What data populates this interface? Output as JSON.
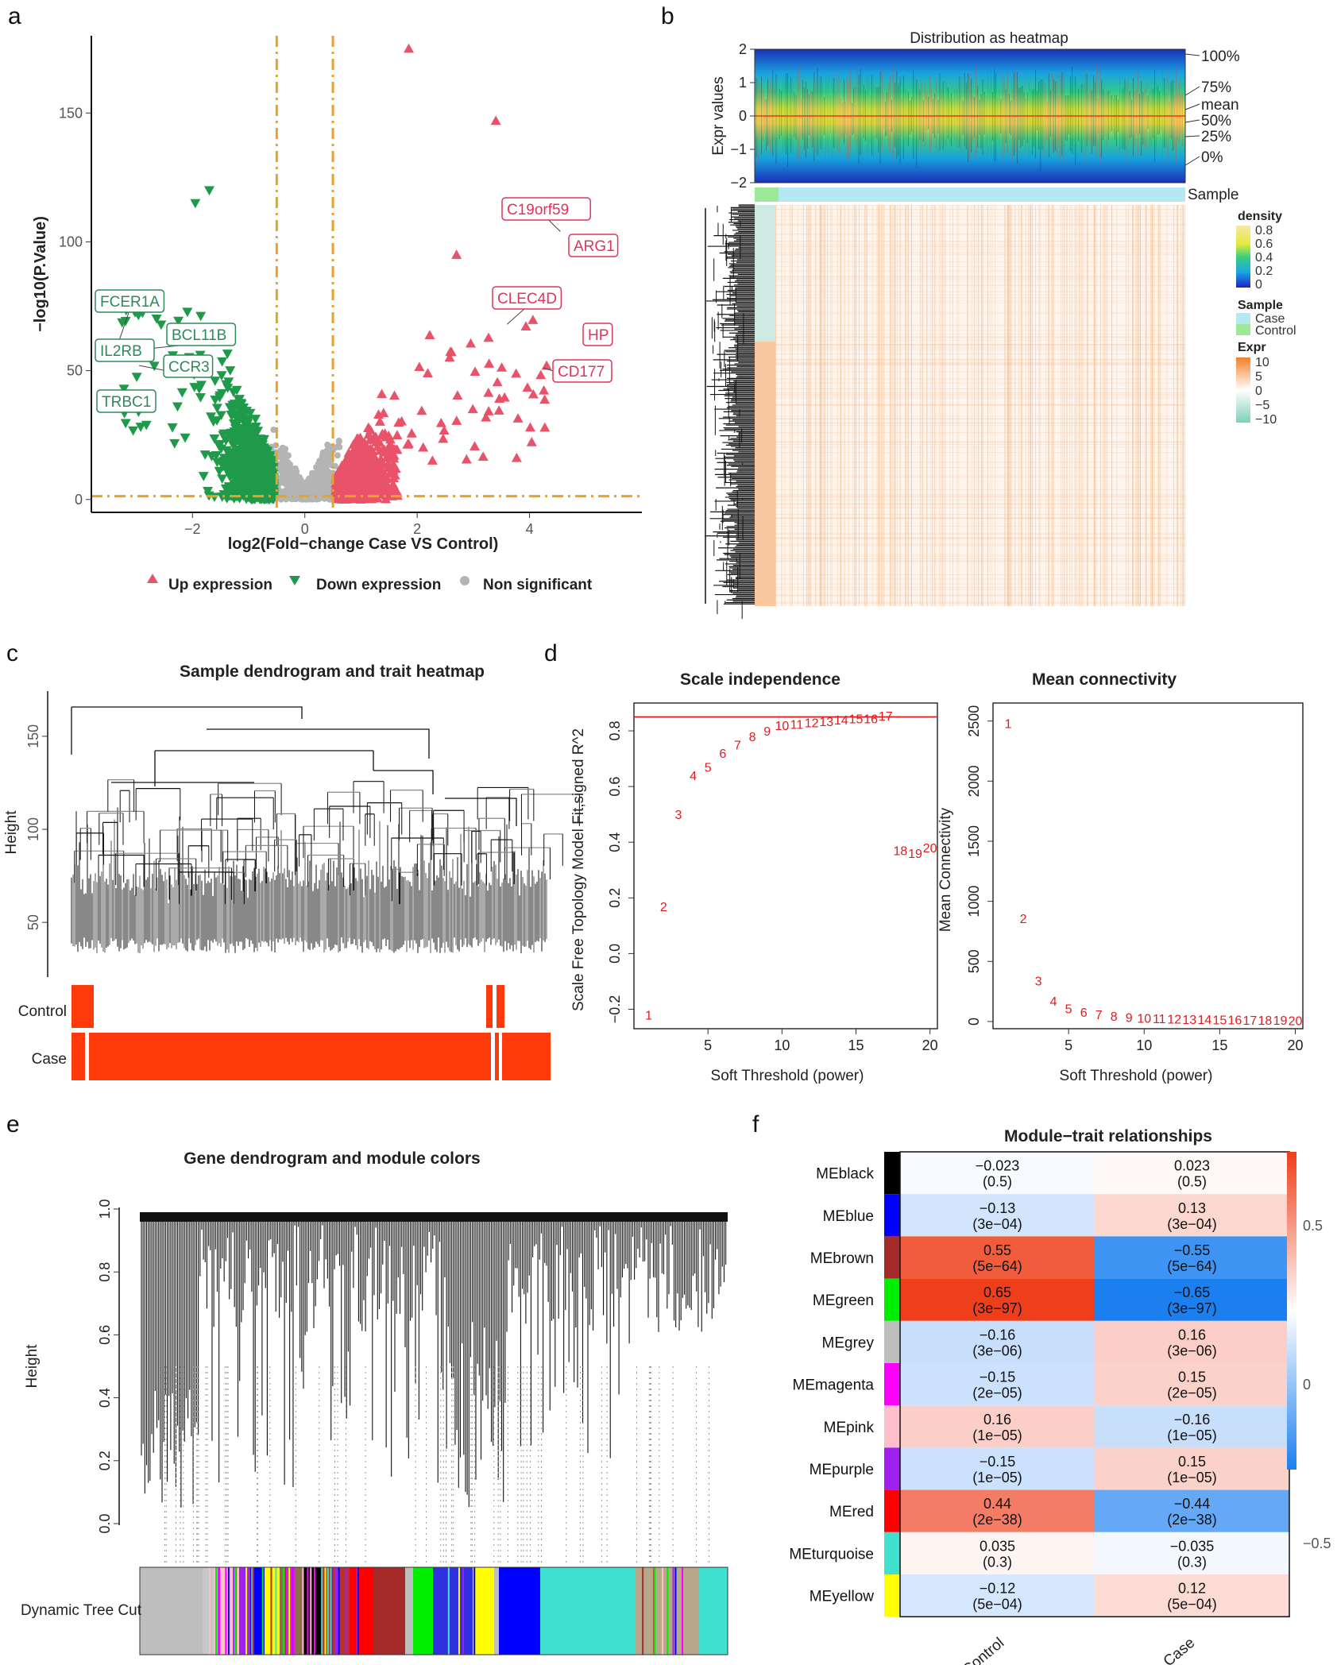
{
  "panels": {
    "a": {
      "letter": "a",
      "xlabel": "log2(Fold−change Case VS Control)",
      "ylabel": "−log10(P.Value)",
      "xticks": [
        "−2",
        "0",
        "2",
        "4"
      ],
      "yticks": [
        "0",
        "50",
        "100",
        "150"
      ],
      "legend": [
        "Up expression",
        "Down expression",
        "Non significant"
      ],
      "colors": {
        "up": "#e8536a",
        "down": "#1f9a4a",
        "ns": "#b4b4b4",
        "cut": "#e8a12a"
      }
    },
    "b": {
      "letter": "b",
      "title": "Distribution as heatmap",
      "ylabel": "Expr values",
      "yticks": [
        "2",
        "1",
        "0",
        "−1",
        "−2"
      ],
      "quantiles": [
        "100%",
        "75%",
        "mean",
        "50%",
        "25%",
        "0%"
      ],
      "sample_label": "Sample",
      "legend_density_title": "density",
      "legend_density_ticks": [
        "0.8",
        "0.6",
        "0.4",
        "0.2",
        "0"
      ],
      "legend_sample_title": "Sample",
      "legend_sample_items": [
        "Case",
        "Control"
      ],
      "legend_expr_title": "Expr",
      "legend_expr_ticks": [
        "10",
        "5",
        "0",
        "−5",
        "−10"
      ]
    },
    "c": {
      "letter": "c",
      "title": "Sample dendrogram and trait heatmap",
      "ylabel": "Height",
      "yticks": [
        "50",
        "100",
        "150"
      ],
      "trait_labels": [
        "Control",
        "Case"
      ]
    },
    "d": {
      "letter": "d",
      "left_title": "Scale independence",
      "right_title": "Mean connectivity",
      "left_ylabel": "Scale Free Topology Model Fit,signed R^2",
      "right_ylabel": "Mean Connectivity",
      "xlabel": "Soft Threshold (power)",
      "left_yticks": [
        "−0.2",
        "0.0",
        "0.2",
        "0.4",
        "0.6",
        "0.8"
      ],
      "right_yticks": [
        "0",
        "500",
        "1000",
        "1500",
        "2000",
        "2500"
      ],
      "xticks": [
        "5",
        "10",
        "15",
        "20"
      ]
    },
    "e": {
      "letter": "e",
      "title": "Gene dendrogram and module colors",
      "ylabel": "Height",
      "yticks": [
        "0.0",
        "0.2",
        "0.4",
        "0.6",
        "0.8",
        "1.0"
      ],
      "bar_label": "Dynamic Tree Cut"
    },
    "f": {
      "letter": "f",
      "title": "Module−trait relationships",
      "columns": [
        "Control",
        "Case"
      ],
      "scale_ticks": [
        "0.5",
        "0",
        "−0.5"
      ]
    }
  },
  "chart_data": [
    {
      "id": "a",
      "type": "scatter",
      "title": "",
      "xlabel": "log2(Fold−change Case VS Control)",
      "ylabel": "−log10(P.Value)",
      "xlim": [
        -3.8,
        6.0
      ],
      "ylim": [
        -5,
        180
      ],
      "logfc_cutoff": [
        -0.5,
        0.5
      ],
      "p_cutoff_y": 1.3,
      "labels": [
        {
          "text": "C19orf59",
          "x": 4.55,
          "y": 104,
          "group": "up"
        },
        {
          "text": "ARG1",
          "x": 5.5,
          "y": 103,
          "group": "up"
        },
        {
          "text": "CLEC4D",
          "x": 3.6,
          "y": 68,
          "group": "up"
        },
        {
          "text": "HP",
          "x": 5.35,
          "y": 60,
          "group": "up"
        },
        {
          "text": "CD177",
          "x": 4.25,
          "y": 51,
          "group": "up"
        },
        {
          "text": "FCER1A",
          "x": -3.3,
          "y": 62,
          "group": "down"
        },
        {
          "text": "BCL11B",
          "x": -3.0,
          "y": 58,
          "group": "down"
        },
        {
          "text": "IL2RB",
          "x": -3.25,
          "y": 59,
          "group": "down"
        },
        {
          "text": "CCR3",
          "x": -2.95,
          "y": 52,
          "group": "down"
        },
        {
          "text": "TRBC1",
          "x": -3.1,
          "y": 42,
          "group": "down"
        }
      ],
      "highlight_points": [
        {
          "x": 1.85,
          "y": 175,
          "group": "up"
        },
        {
          "x": 3.4,
          "y": 147,
          "group": "up"
        },
        {
          "x": 2.7,
          "y": 95,
          "group": "up"
        },
        {
          "x": -1.7,
          "y": 120,
          "group": "down"
        },
        {
          "x": -1.95,
          "y": 115,
          "group": "down"
        }
      ]
    },
    {
      "id": "d-left",
      "type": "scatter",
      "title": "Scale independence",
      "xlabel": "Soft Threshold (power)",
      "ylabel": "Scale Free Topology Model Fit,signed R^2",
      "xlim": [
        0,
        20.5
      ],
      "ylim": [
        -0.27,
        0.9
      ],
      "hline": 0.85,
      "x": [
        1,
        2,
        3,
        4,
        5,
        6,
        7,
        8,
        9,
        10,
        11,
        12,
        13,
        14,
        15,
        16,
        17,
        18,
        19,
        20
      ],
      "y": [
        -0.22,
        0.17,
        0.5,
        0.64,
        0.67,
        0.72,
        0.75,
        0.78,
        0.8,
        0.82,
        0.825,
        0.83,
        0.835,
        0.84,
        0.845,
        0.845,
        0.855,
        0.37,
        0.36,
        0.38
      ]
    },
    {
      "id": "d-right",
      "type": "scatter",
      "title": "Mean connectivity",
      "xlabel": "Soft Threshold (power)",
      "ylabel": "Mean Connectivity",
      "xlim": [
        0,
        20.5
      ],
      "ylim": [
        -60,
        2650
      ],
      "x": [
        1,
        2,
        3,
        4,
        5,
        6,
        7,
        8,
        9,
        10,
        11,
        12,
        13,
        14,
        15,
        16,
        17,
        18,
        19,
        20
      ],
      "y": [
        2480,
        860,
        340,
        170,
        110,
        80,
        60,
        45,
        35,
        30,
        25,
        22,
        20,
        18,
        16,
        15,
        14,
        13,
        12,
        11
      ]
    },
    {
      "id": "f",
      "type": "heatmap",
      "title": "Module−trait relationships",
      "columns": [
        "Control",
        "Case"
      ],
      "rows": [
        {
          "module": "MEblack",
          "color": "#000000",
          "corr": [
            -0.023,
            0.023
          ],
          "corr_text": [
            "−0.023",
            "0.023"
          ],
          "p_text": [
            "(0.5)",
            "(0.5)"
          ]
        },
        {
          "module": "MEblue",
          "color": "#0000ff",
          "corr": [
            -0.13,
            0.13
          ],
          "corr_text": [
            "−0.13",
            "0.13"
          ],
          "p_text": [
            "(3e−04)",
            "(3e−04)"
          ]
        },
        {
          "module": "MEbrown",
          "color": "#a52a2a",
          "corr": [
            0.55,
            -0.55
          ],
          "corr_text": [
            "0.55",
            "−0.55"
          ],
          "p_text": [
            "(5e−64)",
            "(5e−64)"
          ]
        },
        {
          "module": "MEgreen",
          "color": "#00ee00",
          "corr": [
            0.65,
            -0.65
          ],
          "corr_text": [
            "0.65",
            "−0.65"
          ],
          "p_text": [
            "(3e−97)",
            "(3e−97)"
          ]
        },
        {
          "module": "MEgrey",
          "color": "#bebebe",
          "corr": [
            -0.16,
            0.16
          ],
          "corr_text": [
            "−0.16",
            "0.16"
          ],
          "p_text": [
            "(3e−06)",
            "(3e−06)"
          ]
        },
        {
          "module": "MEmagenta",
          "color": "#ff00ff",
          "corr": [
            -0.15,
            0.15
          ],
          "corr_text": [
            "−0.15",
            "0.15"
          ],
          "p_text": [
            "(2e−05)",
            "(2e−05)"
          ]
        },
        {
          "module": "MEpink",
          "color": "#ffc0cb",
          "corr": [
            0.16,
            -0.16
          ],
          "corr_text": [
            "0.16",
            "−0.16"
          ],
          "p_text": [
            "(1e−05)",
            "(1e−05)"
          ]
        },
        {
          "module": "MEpurple",
          "color": "#a020f0",
          "corr": [
            -0.15,
            0.15
          ],
          "corr_text": [
            "−0.15",
            "0.15"
          ],
          "p_text": [
            "(1e−05)",
            "(1e−05)"
          ]
        },
        {
          "module": "MEred",
          "color": "#ff0000",
          "corr": [
            0.44,
            -0.44
          ],
          "corr_text": [
            "0.44",
            "−0.44"
          ],
          "p_text": [
            "(2e−38)",
            "(2e−38)"
          ]
        },
        {
          "module": "MEturquoise",
          "color": "#40e0d0",
          "corr": [
            0.035,
            -0.035
          ],
          "corr_text": [
            "0.035",
            "−0.035"
          ],
          "p_text": [
            "(0.3)",
            "(0.3)"
          ]
        },
        {
          "module": "MEyellow",
          "color": "#ffff00",
          "corr": [
            -0.12,
            0.12
          ],
          "corr_text": [
            "−0.12",
            "0.12"
          ],
          "p_text": [
            "(5e−04)",
            "(5e−04)"
          ]
        }
      ],
      "scale_range": [
        -0.65,
        0.65
      ]
    }
  ]
}
